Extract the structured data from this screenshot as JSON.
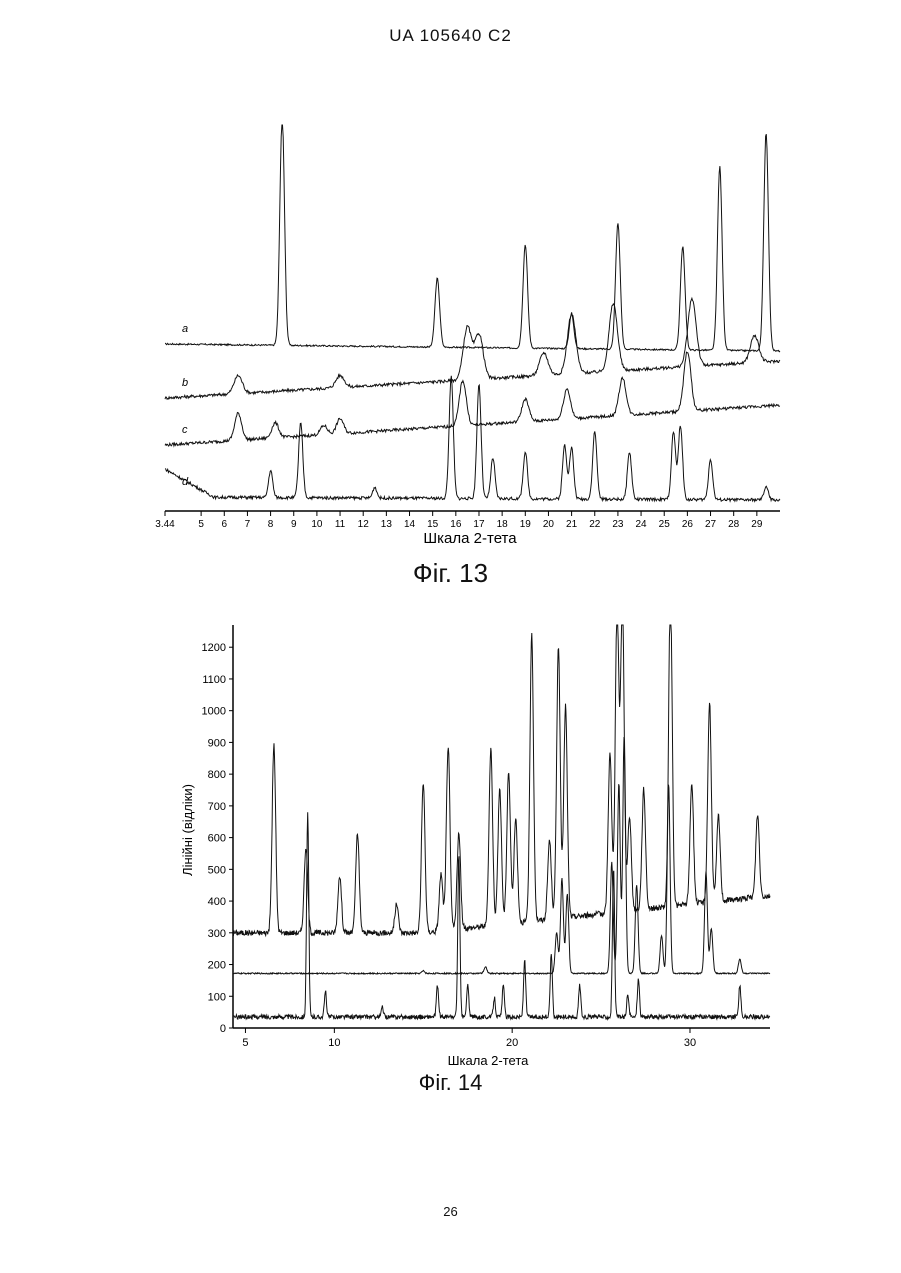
{
  "header": {
    "text": "UA   105640   C2"
  },
  "page_number": "26",
  "chart_data": [
    {
      "type": "line",
      "caption": "Фіг. 13",
      "xlabel": "Шкала 2-тета",
      "ylabel": "",
      "xlim": [
        3.44,
        30
      ],
      "x_ticks": [
        "3.44",
        "5",
        "6",
        "7",
        "8",
        "9",
        "10",
        "11",
        "12",
        "13",
        "14",
        "15",
        "16",
        "17",
        "18",
        "19",
        "20",
        "21",
        "22",
        "23",
        "24",
        "25",
        "26",
        "27",
        "28",
        "29"
      ],
      "series": [
        {
          "name": "a",
          "baseline": 0.0,
          "peaks": [
            [
              8.5,
              1.0
            ],
            [
              15.2,
              0.3
            ],
            [
              19.0,
              0.45
            ],
            [
              21.0,
              0.15
            ],
            [
              23.0,
              0.55
            ],
            [
              25.8,
              0.45
            ],
            [
              27.4,
              0.8
            ],
            [
              29.4,
              0.95
            ]
          ]
        },
        {
          "name": "b",
          "baseline": 0.0,
          "peaks": [
            [
              6.6,
              0.12
            ],
            [
              11.0,
              0.08
            ],
            [
              16.5,
              0.35
            ],
            [
              17.0,
              0.3
            ],
            [
              19.8,
              0.15
            ],
            [
              21.0,
              0.4
            ],
            [
              22.8,
              0.45
            ],
            [
              26.2,
              0.45
            ],
            [
              28.9,
              0.18
            ]
          ]
        },
        {
          "name": "c",
          "baseline": 0.0,
          "peaks": [
            [
              6.6,
              0.18
            ],
            [
              8.2,
              0.1
            ],
            [
              10.3,
              0.06
            ],
            [
              11.0,
              0.1
            ],
            [
              16.3,
              0.3
            ],
            [
              19.0,
              0.15
            ],
            [
              20.8,
              0.2
            ],
            [
              23.2,
              0.25
            ],
            [
              26.0,
              0.4
            ]
          ]
        },
        {
          "name": "d",
          "baseline": 0.0,
          "peaks": [
            [
              8.0,
              0.2
            ],
            [
              9.3,
              0.55
            ],
            [
              12.5,
              0.08
            ],
            [
              15.8,
              0.9
            ],
            [
              17.0,
              0.85
            ],
            [
              17.6,
              0.3
            ],
            [
              19.0,
              0.35
            ],
            [
              20.7,
              0.4
            ],
            [
              21.0,
              0.38
            ],
            [
              22.0,
              0.5
            ],
            [
              23.5,
              0.35
            ],
            [
              25.4,
              0.5
            ],
            [
              25.7,
              0.55
            ],
            [
              27.0,
              0.3
            ],
            [
              29.4,
              0.1
            ]
          ]
        }
      ]
    },
    {
      "type": "line",
      "caption": "Фіг. 14",
      "xlabel": "Шкала 2-тета",
      "ylabel": "Лінійні (відліки)",
      "xlim": [
        4.3,
        34.5
      ],
      "ylim": [
        0,
        1270
      ],
      "x_ticks": [
        5,
        10,
        20,
        30
      ],
      "y_ticks": [
        0,
        100,
        200,
        300,
        400,
        500,
        600,
        700,
        800,
        900,
        1000,
        1100,
        1200
      ],
      "series": [
        {
          "name": "top",
          "baseline": 300,
          "peaks": [
            [
              6.6,
              590
            ],
            [
              8.4,
              270
            ],
            [
              10.3,
              180
            ],
            [
              11.3,
              310
            ],
            [
              13.5,
              90
            ],
            [
              15.0,
              470
            ],
            [
              16.0,
              180
            ],
            [
              16.4,
              580
            ],
            [
              17.0,
              300
            ],
            [
              18.8,
              560
            ],
            [
              19.3,
              430
            ],
            [
              19.8,
              480
            ],
            [
              20.2,
              330
            ],
            [
              21.1,
              900
            ],
            [
              22.1,
              250
            ],
            [
              22.6,
              860
            ],
            [
              23.0,
              670
            ],
            [
              25.5,
              500
            ],
            [
              25.9,
              970
            ],
            [
              26.2,
              1000
            ],
            [
              26.6,
              300
            ],
            [
              27.4,
              380
            ],
            [
              28.9,
              1000
            ],
            [
              30.1,
              380
            ],
            [
              31.1,
              630
            ],
            [
              31.6,
              270
            ],
            [
              33.8,
              260
            ]
          ]
        },
        {
          "name": "middle",
          "baseline": 172,
          "peaks": [
            [
              15.0,
              8
            ],
            [
              18.5,
              20
            ],
            [
              22.5,
              130
            ],
            [
              22.8,
              300
            ],
            [
              23.1,
              250
            ],
            [
              25.6,
              350
            ],
            [
              26.0,
              600
            ],
            [
              26.3,
              750
            ],
            [
              27.0,
              280
            ],
            [
              28.4,
              120
            ],
            [
              28.8,
              600
            ],
            [
              30.9,
              320
            ],
            [
              31.2,
              140
            ],
            [
              32.8,
              45
            ]
          ]
        },
        {
          "name": "bottom",
          "baseline": 35,
          "peaks": [
            [
              8.5,
              640
            ],
            [
              9.5,
              80
            ],
            [
              12.7,
              30
            ],
            [
              15.8,
              100
            ],
            [
              17.0,
              510
            ],
            [
              17.5,
              100
            ],
            [
              19.0,
              60
            ],
            [
              19.5,
              100
            ],
            [
              20.7,
              180
            ],
            [
              22.2,
              200
            ],
            [
              23.8,
              100
            ],
            [
              25.7,
              470
            ],
            [
              26.5,
              70
            ],
            [
              27.1,
              120
            ],
            [
              32.8,
              100
            ]
          ]
        }
      ]
    }
  ]
}
